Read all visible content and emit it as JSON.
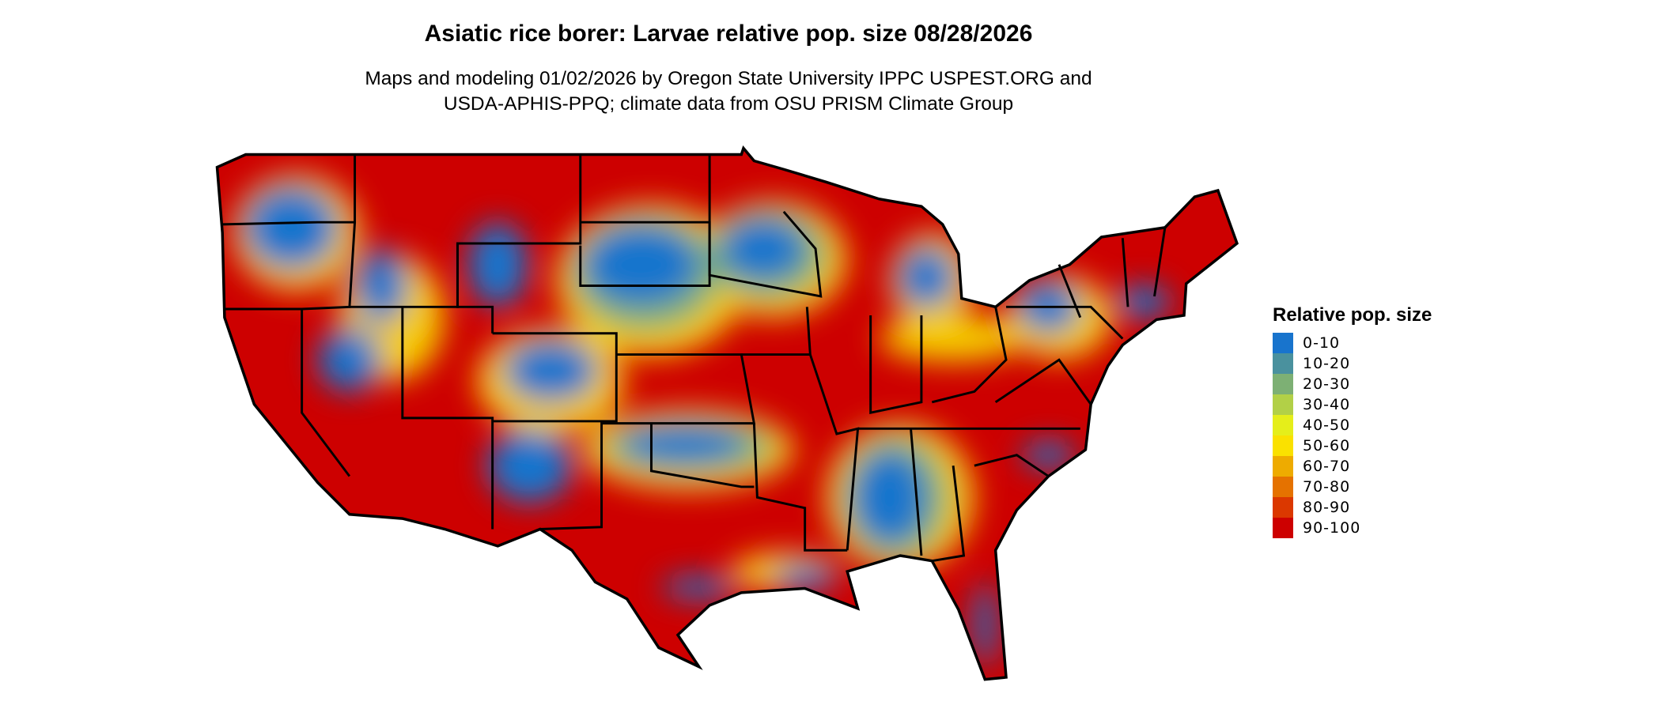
{
  "title": "Asiatic rice borer: Larvae relative pop. size 08/28/2026",
  "subtitle_line1": "Maps and modeling 01/02/2026 by Oregon State University IPPC USPEST.ORG and",
  "subtitle_line2": "USDA-APHIS-PPQ; climate data from OSU PRISM Climate Group",
  "legend": {
    "title": "Relative pop. size",
    "items": [
      {
        "label": "0-10",
        "color": "#1874CD"
      },
      {
        "label": "10-20",
        "color": "#4A919E"
      },
      {
        "label": "20-30",
        "color": "#7DB074"
      },
      {
        "label": "30-40",
        "color": "#B2D047"
      },
      {
        "label": "40-50",
        "color": "#E5EE1A"
      },
      {
        "label": "50-60",
        "color": "#FAE100"
      },
      {
        "label": "60-70",
        "color": "#EEAB00"
      },
      {
        "label": "70-80",
        "color": "#E57200"
      },
      {
        "label": "80-90",
        "color": "#DB3800"
      },
      {
        "label": "90-100",
        "color": "#CD0000"
      }
    ]
  }
}
